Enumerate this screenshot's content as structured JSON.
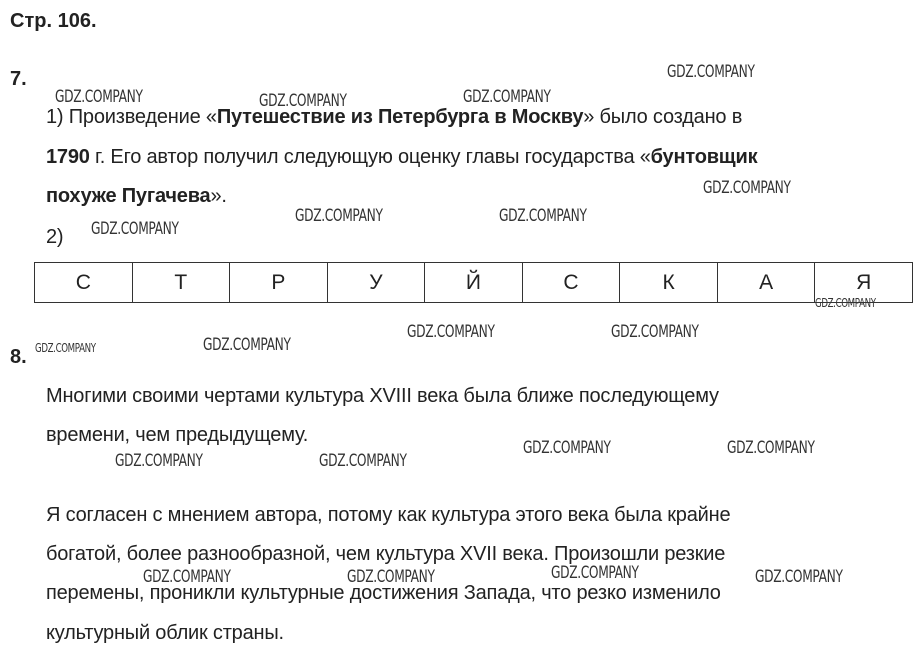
{
  "page_heading": "Стр. 106.",
  "task7": {
    "number": "7.",
    "p1": {
      "prefix": "1) Произведение «",
      "title": "Путешествие из Петербурга в Москву",
      "mid1": "» было создано в",
      "year": "1790",
      "mid2": " г. Его автор получил следующую оценку главы государства «",
      "quote1": "бунтовщик",
      "quote2": "похуже Пугачева",
      "end": "»."
    },
    "p2_label": "2)",
    "letters": [
      "С",
      "Т",
      "Р",
      "У",
      "Й",
      "С",
      "К",
      "А",
      "Я"
    ]
  },
  "task8": {
    "number": "8.",
    "lines": [
      "Многими своими чертами культура XVIII века была ближе последующему",
      "времени, чем предыдущему.",
      "Я согласен с мнением автора, потому как культура этого века была крайне",
      "богатой, более разнообразной, чем культура XVII века. Произошли резкие",
      "перемены, проникли культурные достижения Запада, что резко изменило",
      "культурный облик страны."
    ]
  },
  "watermark": "GDZ.COMPANY"
}
